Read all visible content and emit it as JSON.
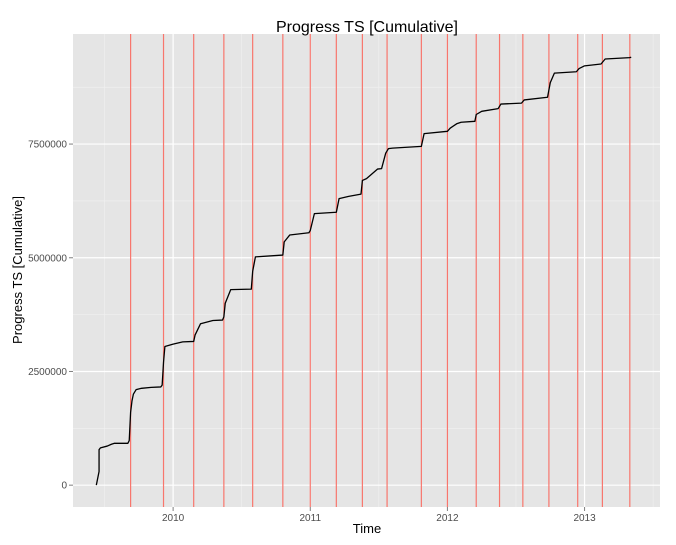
{
  "chart_data": {
    "type": "line",
    "title": "Progress TS [Cumulative]",
    "xlabel": "Time",
    "ylabel": "Progress TS [Cumulative]",
    "xlim": [
      2009.27,
      2013.55
    ],
    "ylim": [
      -480000,
      9920000
    ],
    "grid": true,
    "x_ticks": [
      {
        "value": 2010,
        "label": "2010"
      },
      {
        "value": 2011,
        "label": "2011"
      },
      {
        "value": 2012,
        "label": "2012"
      },
      {
        "value": 2013,
        "label": "2013"
      }
    ],
    "y_ticks": [
      {
        "value": 0,
        "label": "0"
      },
      {
        "value": 2500000,
        "label": "2500000"
      },
      {
        "value": 5000000,
        "label": "5000000"
      },
      {
        "value": 7500000,
        "label": "7500000"
      }
    ],
    "vlines": [
      2009.69,
      2009.93,
      2010.15,
      2010.37,
      2010.58,
      2010.8,
      2011.0,
      2011.19,
      2011.38,
      2011.56,
      2011.81,
      2012.0,
      2012.21,
      2012.38,
      2012.55,
      2012.74,
      2012.95,
      2013.13,
      2013.33
    ],
    "vline_color": "#f8766d",
    "line_color": "#000000",
    "series": [
      {
        "x": [
          2009.44,
          2009.46,
          2009.46,
          2009.47,
          2009.52,
          2009.55,
          2009.57,
          2009.67,
          2009.68,
          2009.69,
          2009.7,
          2009.71,
          2009.73,
          2009.77,
          2009.84,
          2009.91,
          2009.92,
          2009.93,
          2009.94,
          2010.0,
          2010.07,
          2010.15,
          2010.16,
          2010.2,
          2010.29,
          2010.36,
          2010.37,
          2010.38,
          2010.42,
          2010.57,
          2010.58,
          2010.6,
          2010.8,
          2010.81,
          2010.85,
          2010.99,
          2011.0,
          2011.03,
          2011.19,
          2011.21,
          2011.28,
          2011.37,
          2011.38,
          2011.41,
          2011.49,
          2011.52,
          2011.55,
          2011.57,
          2011.6,
          2011.81,
          2011.83,
          2012.0,
          2012.02,
          2012.07,
          2012.1,
          2012.2,
          2012.21,
          2012.25,
          2012.37,
          2012.39,
          2012.54,
          2012.56,
          2012.73,
          2012.75,
          2012.78,
          2012.94,
          2012.96,
          2013.0,
          2013.12,
          2013.15,
          2013.33,
          2013.34
        ],
        "y": [
          0,
          300000,
          780000,
          820000,
          860000,
          900000,
          920000,
          920000,
          980000,
          1600000,
          1850000,
          2000000,
          2100000,
          2130000,
          2150000,
          2160000,
          2200000,
          2700000,
          3050000,
          3100000,
          3150000,
          3160000,
          3300000,
          3550000,
          3620000,
          3630000,
          3700000,
          4000000,
          4300000,
          4310000,
          4700000,
          5020000,
          5060000,
          5350000,
          5500000,
          5550000,
          5600000,
          5970000,
          6000000,
          6300000,
          6350000,
          6400000,
          6700000,
          6740000,
          6950000,
          6960000,
          7300000,
          7400000,
          7410000,
          7450000,
          7730000,
          7780000,
          7850000,
          7950000,
          7980000,
          8000000,
          8150000,
          8220000,
          8280000,
          8380000,
          8400000,
          8470000,
          8530000,
          8850000,
          9060000,
          9090000,
          9160000,
          9220000,
          9260000,
          9370000,
          9400000,
          9410000
        ]
      }
    ]
  }
}
